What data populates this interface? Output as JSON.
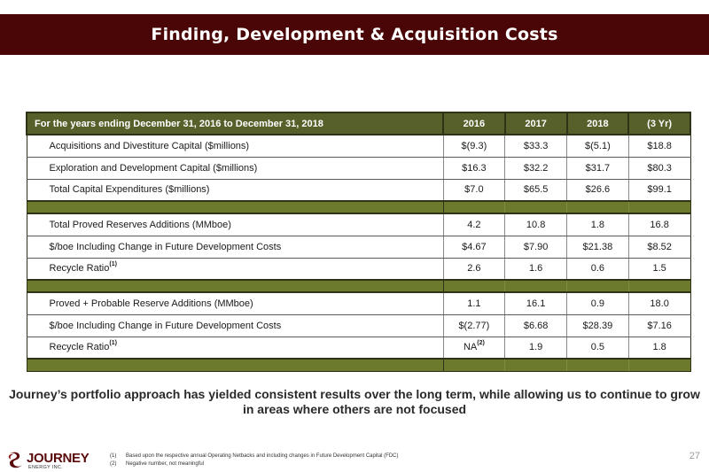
{
  "title": "Finding, Development & Acquisition Costs",
  "table": {
    "header": {
      "label": "For the years ending December 31, 2016 to December 31, 2018",
      "columns": [
        "2016",
        "2017",
        "2018",
        "(3 Yr)"
      ]
    },
    "group1": [
      {
        "label": "Acquisitions and Divestiture Capital ($millions)",
        "values": [
          "$(9.3)",
          "$33.3",
          "$(5.1)",
          "$18.8"
        ]
      },
      {
        "label": "Exploration and Development Capital ($millions)",
        "values": [
          "$16.3",
          "$32.2",
          "$31.7",
          "$80.3"
        ]
      },
      {
        "label": "Total Capital Expenditures ($millions)",
        "values": [
          "$7.0",
          "$65.5",
          "$26.6",
          "$99.1"
        ]
      }
    ],
    "group2": [
      {
        "label": "Total Proved Reserves Additions (MMboe)",
        "values": [
          "4.2",
          "10.8",
          "1.8",
          "16.8"
        ]
      },
      {
        "label": "$/boe Including Change in Future Development Costs",
        "values": [
          "$4.67",
          "$7.90",
          "$21.38",
          "$8.52"
        ]
      },
      {
        "label": "Recycle Ratio",
        "sup": "(1)",
        "values": [
          "2.6",
          "1.6",
          "0.6",
          "1.5"
        ]
      }
    ],
    "group3": [
      {
        "label": "Proved + Probable Reserve Additions (MMboe)",
        "values": [
          "1.1",
          "16.1",
          "0.9",
          "18.0"
        ]
      },
      {
        "label": "$/boe Including Change in Future Development Costs",
        "values": [
          "$(2.77)",
          "$6.68",
          "$28.39",
          "$7.16"
        ]
      },
      {
        "label": "Recycle Ratio",
        "sup": "(1)",
        "values": [
          "NA",
          "1.9",
          "0.5",
          "1.8"
        ],
        "first_value_sup": "(2)"
      }
    ]
  },
  "summary": "Journey’s portfolio approach has yielded consistent results over the long term, while allowing us to continue to grow in areas where others are not focused",
  "footnotes": [
    {
      "num": "(1)",
      "text": "Based upon the respective annual Operating Netbacks and including changes in Future Development Capital (FDC)"
    },
    {
      "num": "(2)",
      "text": "Negative number, not meaningful"
    }
  ],
  "logo": {
    "name": "JOURNEY",
    "sub": "ENERGY INC."
  },
  "page_number": "27",
  "colors": {
    "title_bar": "#4a0606",
    "header_bg": "#575f2a",
    "separator": "#6b7a2c",
    "logo": "#5a0a0a"
  }
}
